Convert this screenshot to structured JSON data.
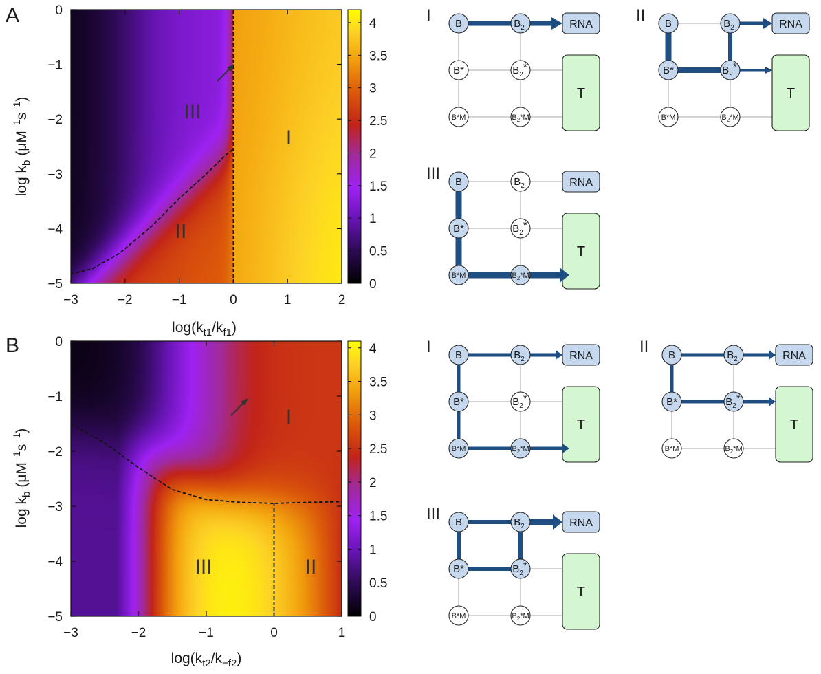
{
  "panels": [
    {
      "letter": "A",
      "xlabel_main": "log(k",
      "xlabel_sub1": "t1",
      "xlabel_mid": "/k",
      "xlabel_sub2": "f1",
      "xlabel_end": ")",
      "ylabel": "log k",
      "ylabel_sub": "b",
      "ylabel_unit": "(μM",
      "ylabel_e1": "−1",
      "ylabel_s": "s",
      "ylabel_e2": "−1",
      "ylabel_end": ")",
      "xticks": [
        "−3",
        "−2",
        "−1",
        "0",
        "1",
        "2"
      ],
      "yticks": [
        "0",
        "−1",
        "−2",
        "−3",
        "−4",
        "−5"
      ],
      "cbticks": [
        "4",
        "3.5",
        "3",
        "2.5",
        "2",
        "1.5",
        "1",
        "0.5",
        "0"
      ],
      "regions": [
        "III",
        "I",
        "II"
      ]
    },
    {
      "letter": "B",
      "xlabel_main": "log(k",
      "xlabel_sub1": "t2",
      "xlabel_mid": "/k",
      "xlabel_sub2": "−f2",
      "xlabel_end": ")",
      "ylabel": "log k",
      "ylabel_sub": "b",
      "ylabel_unit": "(μM",
      "ylabel_e1": "−1",
      "ylabel_s": "s",
      "ylabel_e2": "−1",
      "ylabel_end": ")",
      "xticks": [
        "−3",
        "−2",
        "−1",
        "0",
        "1"
      ],
      "yticks": [
        "0",
        "−1",
        "−2",
        "−3",
        "−4",
        "−5"
      ],
      "cbticks": [
        "4",
        "3.5",
        "3",
        "2.5",
        "2",
        "1.5",
        "1",
        "0.5",
        "0"
      ],
      "regions": [
        "I",
        "III",
        "II"
      ]
    }
  ],
  "diagram_labels": {
    "roman": [
      "I",
      "II",
      "III"
    ],
    "B": "B",
    "B2": "B",
    "B2_sub": "2",
    "Bstar": "B*",
    "B2star_sub": "2",
    "B2star_sup": "*",
    "BstarM": "B*M",
    "B2starM_sub": "2",
    "B2starM_end": "*M",
    "RNA": "RNA",
    "T": "T"
  },
  "colors": {
    "path": "#1f4e82",
    "gray_edge": "#d3d3d3",
    "blue_node": "#c5d8ee",
    "green_box": "#d4f7d2",
    "colormap": [
      "#000000",
      "#2d0a55",
      "#6a15b8",
      "#9e22f2",
      "#a02a9a",
      "#c22418",
      "#dc5a0a",
      "#f2a00e",
      "#fdd326",
      "#ffff00"
    ]
  },
  "chart_data": [
    {
      "type": "heatmap",
      "panel": "A",
      "xlabel": "log(k_t1/k_f1)",
      "ylabel": "log k_b (μM^-1 s^-1)",
      "xlim": [
        -3,
        2
      ],
      "ylim": [
        -5,
        0
      ],
      "colorbar_lim": [
        0,
        4.2
      ],
      "colorbar_ticks": [
        0,
        0.5,
        1,
        1.5,
        2,
        2.5,
        3,
        3.5,
        4
      ],
      "region_labels": [
        "I",
        "II",
        "III"
      ],
      "boundaries": [
        {
          "x": [
            0,
            0
          ],
          "y": [
            -5,
            0
          ]
        },
        {
          "x": [
            -3,
            -2.6,
            -2.1,
            -1.5,
            -1.0,
            -0.5,
            -0.1,
            0
          ],
          "y": [
            -4.83,
            -4.73,
            -4.45,
            -3.95,
            -3.45,
            -3.0,
            -2.62,
            -2.55
          ]
        }
      ]
    },
    {
      "type": "heatmap",
      "panel": "B",
      "xlabel": "log(k_t2/k_-f2)",
      "ylabel": "log k_b (μM^-1 s^-1)",
      "xlim": [
        -3,
        1
      ],
      "ylim": [
        -5,
        0
      ],
      "colorbar_lim": [
        0,
        4.1
      ],
      "colorbar_ticks": [
        0,
        0.5,
        1,
        1.5,
        2,
        2.5,
        3,
        3.5,
        4
      ],
      "region_labels": [
        "I",
        "II",
        "III"
      ],
      "boundaries": [
        {
          "x": [
            -3,
            -2.5,
            -2.0,
            -1.5,
            -1.0,
            -0.5,
            0,
            0.5,
            1
          ],
          "y": [
            -1.5,
            -1.85,
            -2.3,
            -2.7,
            -2.88,
            -2.93,
            -2.95,
            -2.93,
            -2.92
          ]
        },
        {
          "x": [
            0,
            0
          ],
          "y": [
            -5,
            -2.95
          ]
        }
      ]
    }
  ]
}
